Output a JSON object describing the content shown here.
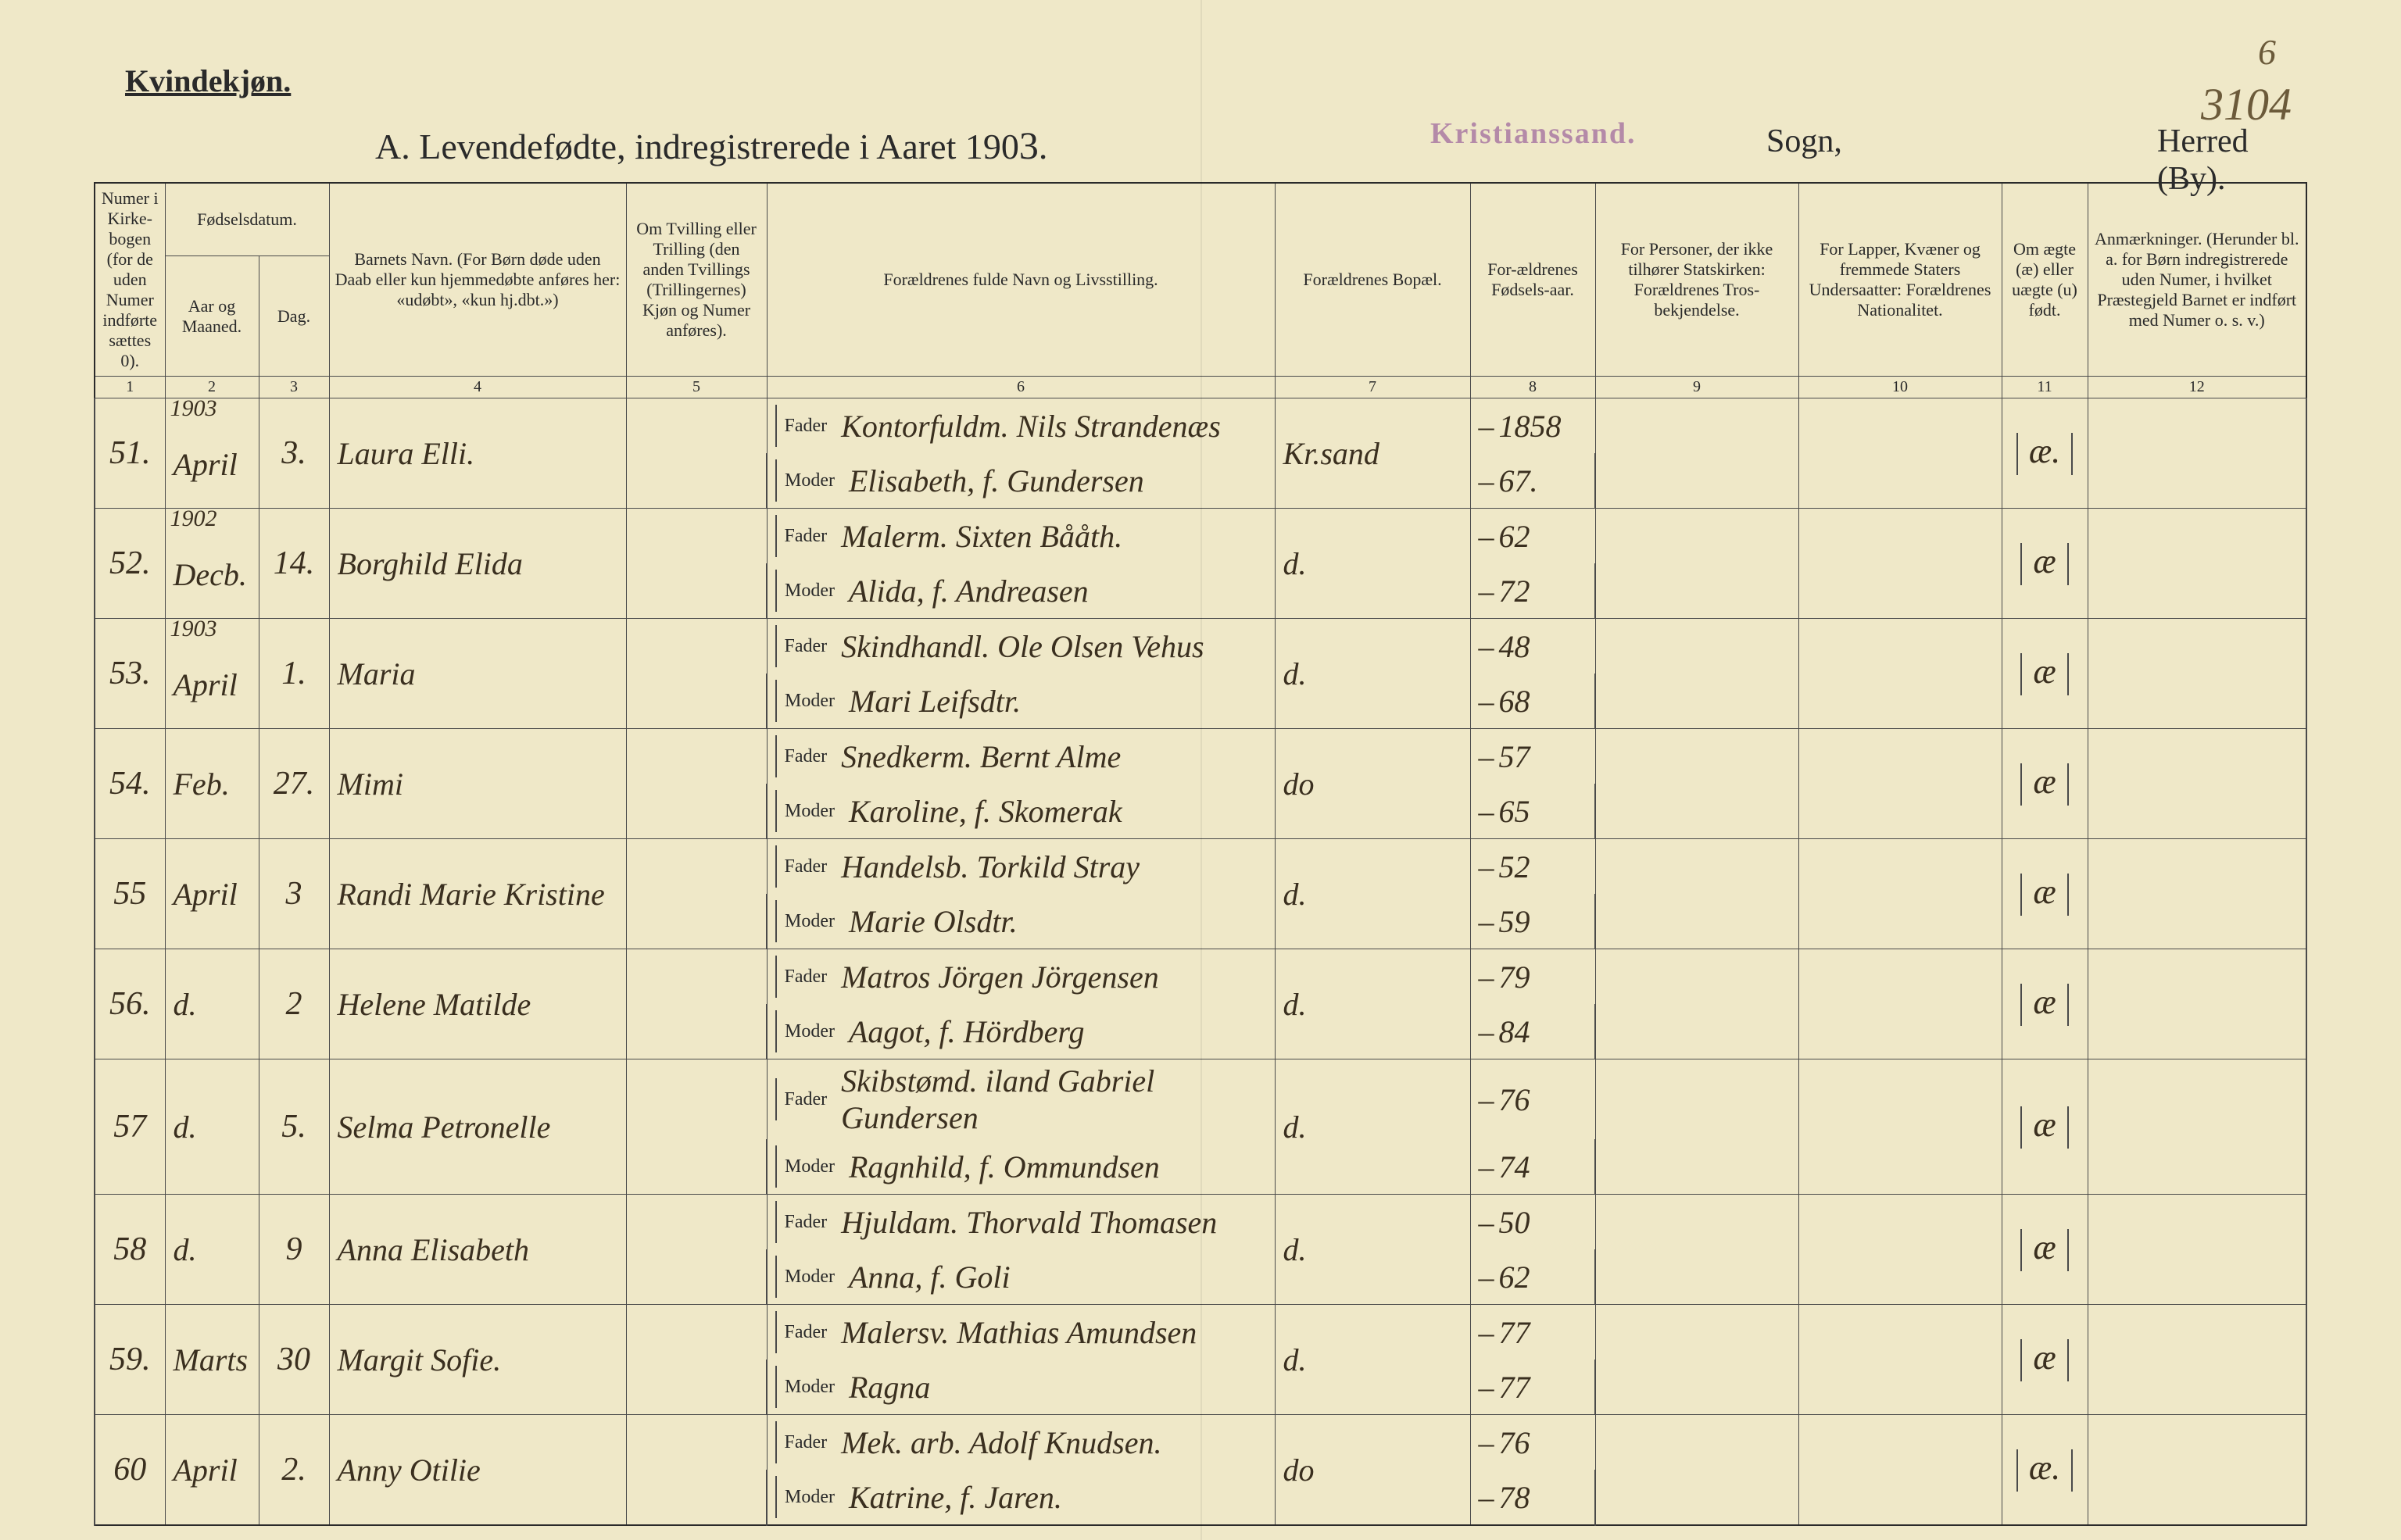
{
  "page_number_top": "6",
  "page_number_side": "3104",
  "gender_heading": "Kvindekjøn.",
  "title_prefix": "A.  Levendefødte, indregistrerede i Aaret 190",
  "title_year_digit": "3",
  "title_suffix": ".",
  "stamp": "Kristianssand.",
  "sogn_label": "Sogn,",
  "herred_label": "Herred (By).",
  "columns": {
    "c1": "Numer i Kirke-bogen (for de uden Numer indførte sættes 0).",
    "c2a": "Fødselsdatum.",
    "c2_aar": "Aar og Maaned.",
    "c2_dag": "Dag.",
    "c4": "Barnets Navn.\n(For Børn døde uden Daab eller kun hjemmedøbte anføres her: «udøbt», «kun hj.dbt.»)",
    "c5": "Om Tvilling eller Trilling (den anden Tvillings (Trillingernes) Kjøn og Numer anføres).",
    "c6": "Forældrenes fulde Navn og Livsstilling.",
    "c7": "Forældrenes Bopæl.",
    "c8": "For-ældrenes Fødsels-aar.",
    "c9": "For Personer, der ikke tilhører Statskirken: Forældrenes Tros-bekjendelse.",
    "c10": "For Lapper, Kvæner og fremmede Staters Undersaatter: Forældrenes Nationalitet.",
    "c11": "Om ægte (æ) eller uægte (u) født.",
    "c12": "Anmærkninger.\n(Herunder bl. a. for Børn indregistrerede uden Numer, i hvilket Præstegjeld Barnet er indført med Numer o. s. v.)"
  },
  "colnums": [
    "1",
    "2",
    "3",
    "4",
    "5",
    "6",
    "7",
    "8",
    "9",
    "10",
    "11",
    "12"
  ],
  "fader_label": "Fader",
  "moder_label": "Moder",
  "year_headers": {
    "0": "1903",
    "1": "1902",
    "2": "1903"
  },
  "rows": [
    {
      "num": "51.",
      "month": "April",
      "day": "3.",
      "child": "Laura Elli.",
      "fader": "Kontorfuldm. Nils Strandenæs",
      "moder": "Elisabeth, f. Gundersen",
      "bopal": "Kr.sand",
      "f_year": "1858",
      "m_year": "67.",
      "legit": "æ."
    },
    {
      "num": "52.",
      "month": "Decb.",
      "day": "14.",
      "child": "Borghild Elida",
      "fader": "Malerm. Sixten Bååth.",
      "moder": "Alida, f. Andreasen",
      "bopal": "d.",
      "f_year": "62",
      "m_year": "72",
      "legit": "æ"
    },
    {
      "num": "53.",
      "month": "April",
      "day": "1.",
      "child": "Maria",
      "fader": "Skindhandl. Ole Olsen Vehus",
      "moder": "Mari Leifsdtr.",
      "bopal": "d.",
      "f_year": "48",
      "m_year": "68",
      "legit": "æ"
    },
    {
      "num": "54.",
      "month": "Feb.",
      "day": "27.",
      "child": "Mimi",
      "fader": "Snedkerm. Bernt Alme",
      "moder": "Karoline, f. Skomerak",
      "bopal": "do",
      "f_year": "57",
      "m_year": "65",
      "legit": "æ"
    },
    {
      "num": "55",
      "month": "April",
      "day": "3",
      "child": "Randi Marie Kristine",
      "fader": "Handelsb. Torkild Stray",
      "moder": "Marie Olsdtr.",
      "bopal": "d.",
      "f_year": "52",
      "m_year": "59",
      "legit": "æ"
    },
    {
      "num": "56.",
      "month": "d.",
      "day": "2",
      "child": "Helene Matilde",
      "fader": "Matros Jörgen Jörgensen",
      "moder": "Aagot, f. Hördberg",
      "bopal": "d.",
      "f_year": "79",
      "m_year": "84",
      "legit": "æ"
    },
    {
      "num": "57",
      "month": "d.",
      "day": "5.",
      "child": "Selma Petronelle",
      "fader": "Skibstømd. iland Gabriel Gundersen",
      "moder": "Ragnhild, f. Ommundsen",
      "bopal": "d.",
      "f_year": "76",
      "m_year": "74",
      "legit": "æ"
    },
    {
      "num": "58",
      "month": "d.",
      "day": "9",
      "child": "Anna Elisabeth",
      "fader": "Hjuldam. Thorvald Thomasen",
      "moder": "Anna, f. Goli",
      "bopal": "d.",
      "f_year": "50",
      "m_year": "62",
      "legit": "æ"
    },
    {
      "num": "59.",
      "month": "Marts",
      "day": "30",
      "child": "Margit Sofie.",
      "fader": "Malersv. Mathias Amundsen",
      "moder": "Ragna",
      "bopal": "d.",
      "f_year": "77",
      "m_year": "77",
      "legit": "æ"
    },
    {
      "num": "60",
      "month": "April",
      "day": "2.",
      "child": "Anny Otilie",
      "fader": "Mek. arb. Adolf Knudsen.",
      "moder": "Katrine, f. Jaren.",
      "bopal": "do",
      "f_year": "76",
      "m_year": "78",
      "legit": "æ."
    }
  ]
}
